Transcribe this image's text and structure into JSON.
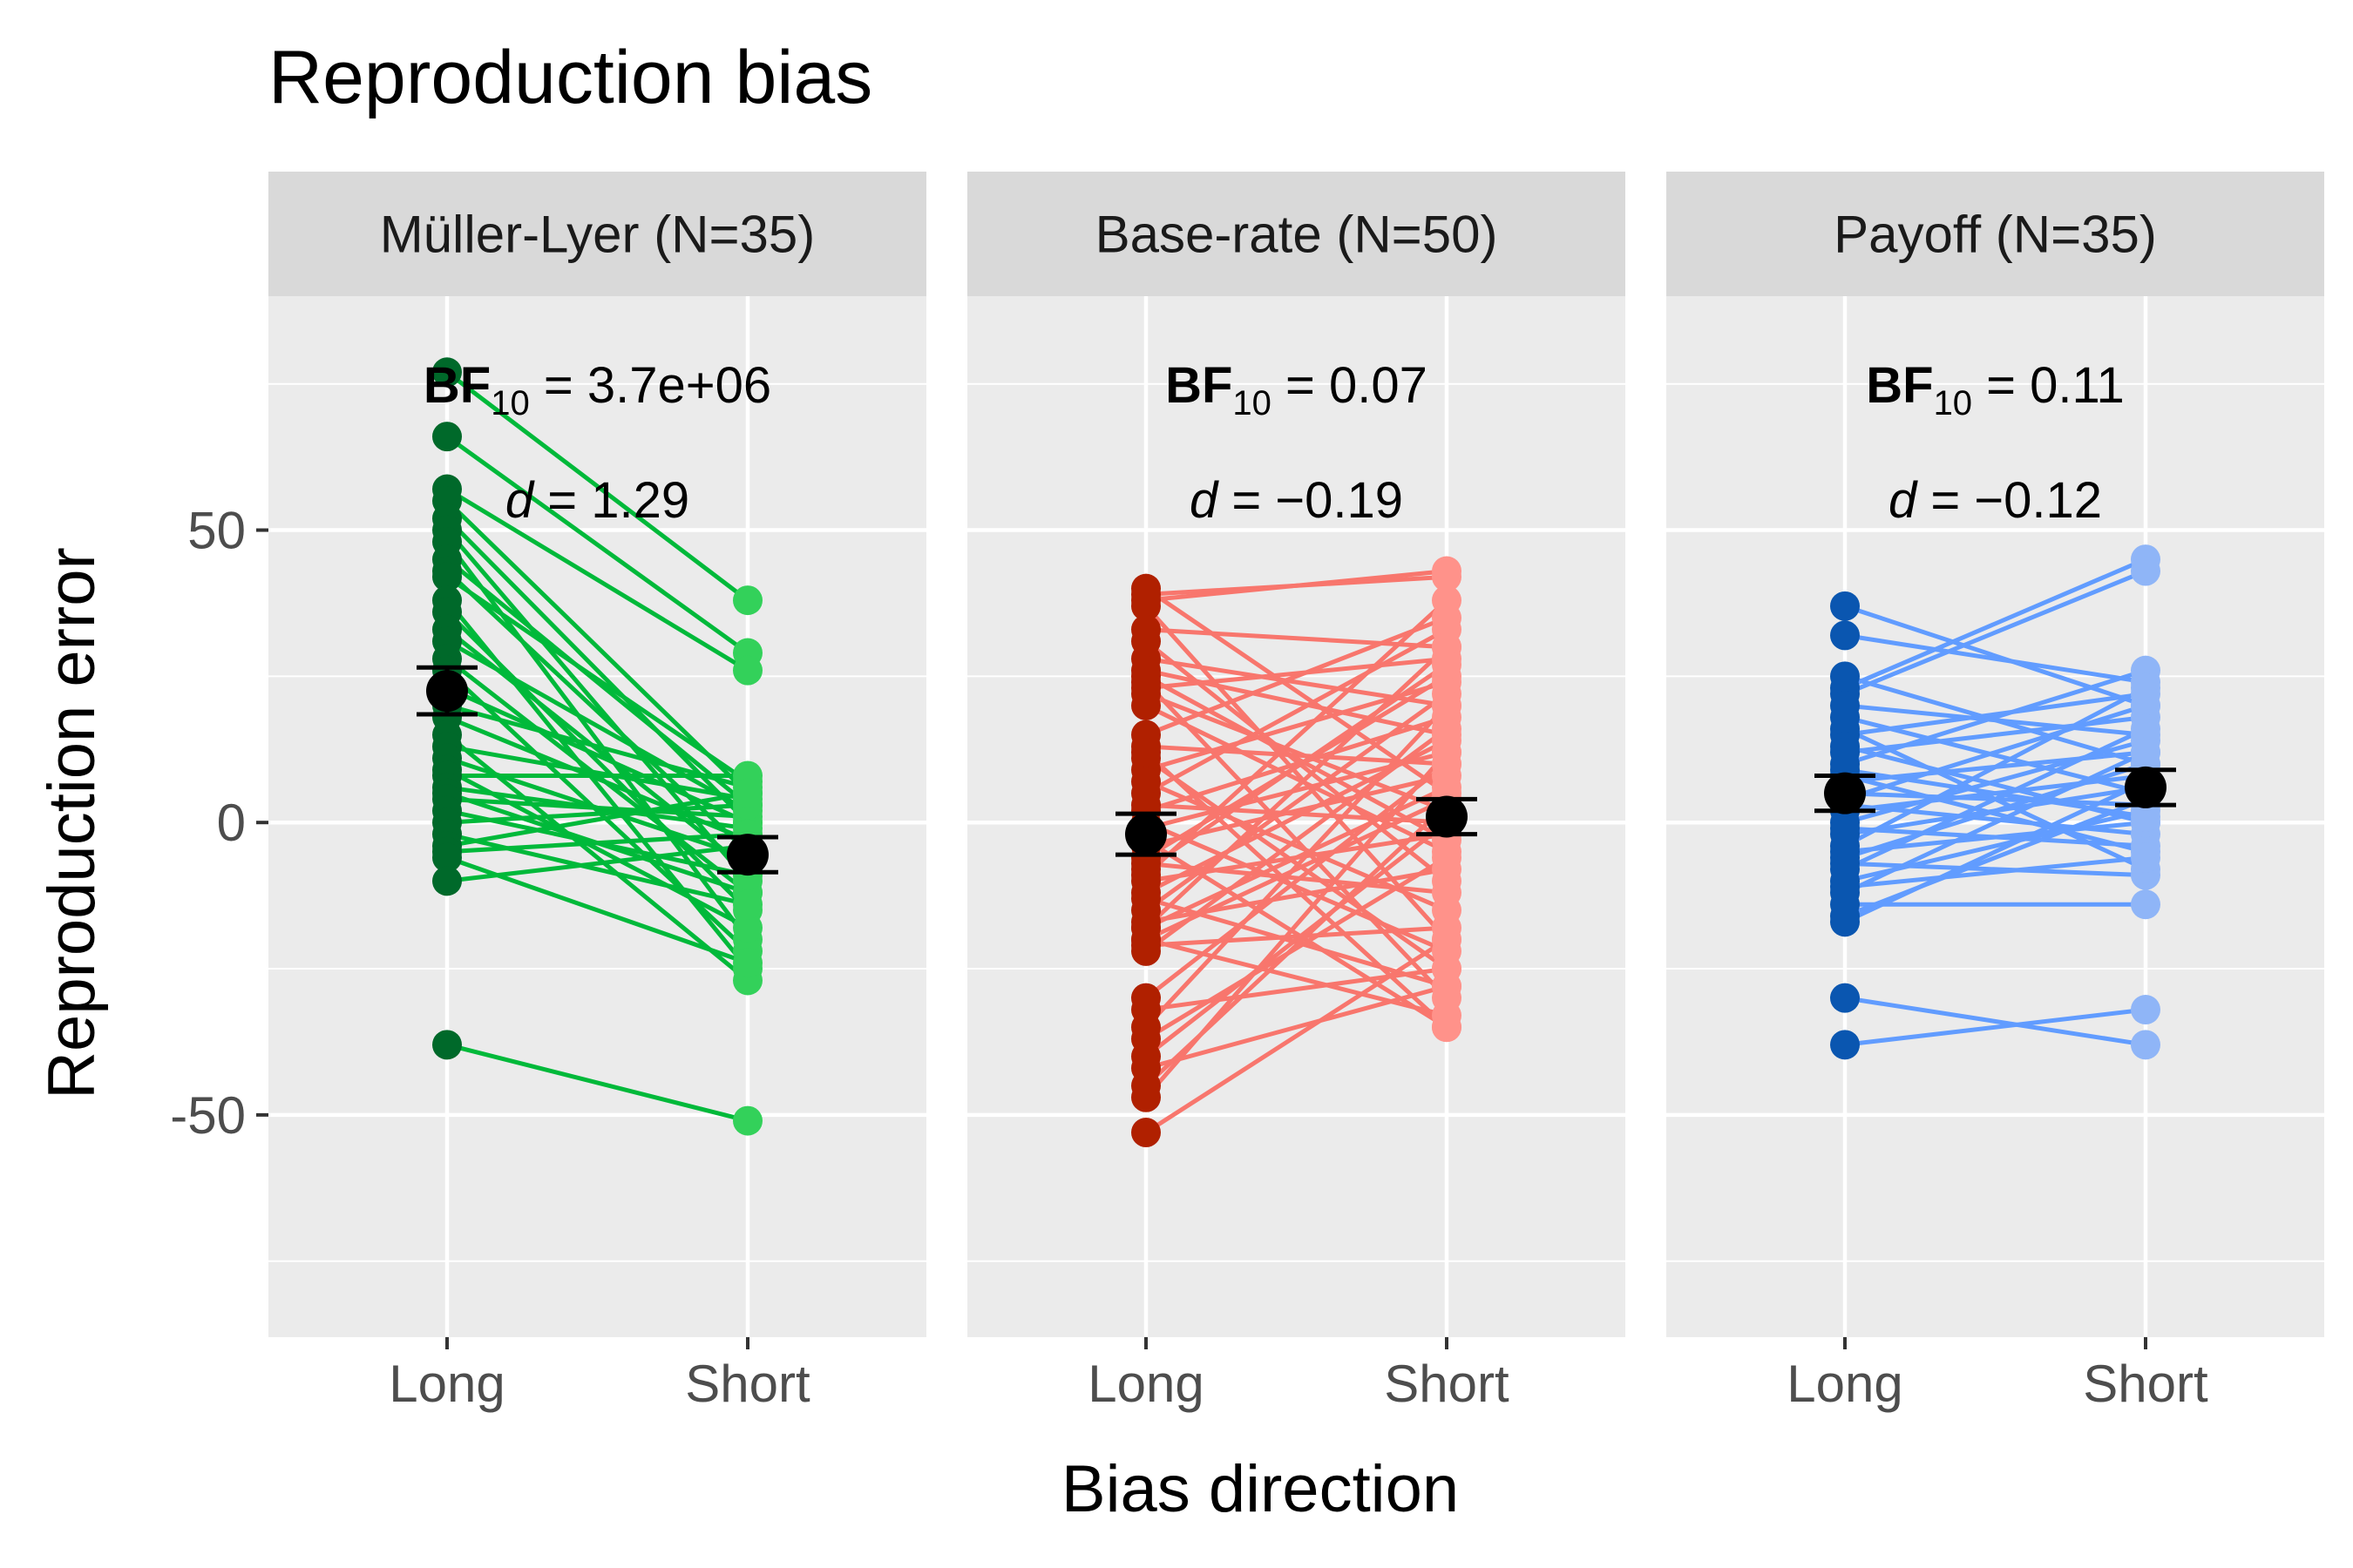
{
  "chart_data": {
    "type": "scatter",
    "title": "Reproduction bias",
    "xlabel": "Bias direction",
    "ylabel": "Reproduction error",
    "categories": [
      "Long",
      "Short"
    ],
    "ylim": [
      -88,
      90
    ],
    "yticks": [
      {
        "value": 50,
        "label": "50"
      },
      {
        "value": 0,
        "label": "0"
      },
      {
        "value": -50,
        "label": "-50"
      }
    ],
    "grid": true,
    "panels": [
      {
        "strip": "Müller-Lyer (N=35)",
        "bf_label": "BF",
        "bf_sub": "10",
        "bf_value": " = 3.7e+06",
        "d_label": "d",
        "d_value": " = 1.29",
        "colors": {
          "long": "#00692a",
          "short": "#33d15a",
          "line": "#00b93a"
        },
        "mean": {
          "long": 22.5,
          "short": -5.5
        },
        "error": {
          "long": [
            18.5,
            26.5
          ],
          "short": [
            -8.5,
            -2.5
          ]
        },
        "pairs": [
          [
            77,
            38
          ],
          [
            66,
            29
          ],
          [
            57,
            26
          ],
          [
            55,
            5
          ],
          [
            52,
            0
          ],
          [
            50,
            -10
          ],
          [
            48,
            -20
          ],
          [
            45,
            3
          ],
          [
            43,
            -5
          ],
          [
            42,
            7
          ],
          [
            38,
            -25
          ],
          [
            36,
            -15
          ],
          [
            33,
            -8
          ],
          [
            31,
            2
          ],
          [
            28,
            -12
          ],
          [
            26,
            -22
          ],
          [
            23,
            0
          ],
          [
            20,
            6
          ],
          [
            18,
            -3
          ],
          [
            15,
            -27
          ],
          [
            13,
            4
          ],
          [
            11,
            -6
          ],
          [
            9,
            -18
          ],
          [
            8,
            8
          ],
          [
            6,
            -1
          ],
          [
            5,
            -12
          ],
          [
            4,
            1
          ],
          [
            2,
            -9
          ],
          [
            0,
            3
          ],
          [
            -2,
            -14
          ],
          [
            -4,
            5
          ],
          [
            -5,
            -2
          ],
          [
            -6,
            -24
          ],
          [
            -10,
            -4
          ],
          [
            -38,
            -51
          ]
        ]
      },
      {
        "strip": "Base-rate (N=50)",
        "bf_label": "BF",
        "bf_sub": "10",
        "bf_value": " = 0.07",
        "d_label": "d",
        "d_value": " = −0.19",
        "colors": {
          "long": "#b02000",
          "short": "#ff928a",
          "line": "#f8766d"
        },
        "mean": {
          "long": -2,
          "short": 1
        },
        "error": {
          "long": [
            -5.5,
            1.5
          ],
          "short": [
            -2,
            4
          ]
        },
        "pairs": [
          [
            40,
            5
          ],
          [
            38,
            43
          ],
          [
            37,
            -20
          ],
          [
            33,
            30
          ],
          [
            31,
            -10
          ],
          [
            28,
            20
          ],
          [
            26,
            15
          ],
          [
            24,
            -30
          ],
          [
            23,
            28
          ],
          [
            22,
            2
          ],
          [
            20,
            -5
          ],
          [
            15,
            35
          ],
          [
            13,
            10
          ],
          [
            11,
            -25
          ],
          [
            9,
            24
          ],
          [
            7,
            -15
          ],
          [
            5,
            33
          ],
          [
            3,
            0
          ],
          [
            2,
            18
          ],
          [
            0,
            -22
          ],
          [
            -1,
            12
          ],
          [
            -3,
            -35
          ],
          [
            -4,
            8
          ],
          [
            -6,
            25
          ],
          [
            -7,
            -12
          ],
          [
            -9,
            38
          ],
          [
            -10,
            -2
          ],
          [
            -12,
            14
          ],
          [
            -13,
            -28
          ],
          [
            -15,
            22
          ],
          [
            -17,
            -8
          ],
          [
            -18,
            30
          ],
          [
            -20,
            4
          ],
          [
            -21,
            -18
          ],
          [
            -22,
            16
          ],
          [
            -20,
            -33
          ],
          [
            -18,
            6
          ],
          [
            -30,
            10
          ],
          [
            -32,
            -25
          ],
          [
            -35,
            20
          ],
          [
            -37,
            -6
          ],
          [
            -40,
            0
          ],
          [
            -42,
            -28
          ],
          [
            -45,
            3
          ],
          [
            -47,
            12
          ],
          [
            -53,
            -20
          ],
          [
            39,
            42
          ],
          [
            12,
            -35
          ],
          [
            -8,
            27
          ],
          [
            25,
            -3
          ]
        ]
      },
      {
        "strip": "Payoff (N=35)",
        "bf_label": "BF",
        "bf_sub": "10",
        "bf_value": " = 0.11",
        "d_label": "d",
        "d_value": " = −0.12",
        "colors": {
          "long": "#0a56b0",
          "short": "#8fb5f7",
          "line": "#619cff"
        },
        "mean": {
          "long": 5,
          "short": 6
        },
        "error": {
          "long": [
            2,
            8
          ],
          "short": [
            3,
            9
          ]
        },
        "pairs": [
          [
            37,
            20
          ],
          [
            32,
            24
          ],
          [
            25,
            10
          ],
          [
            23,
            45
          ],
          [
            22,
            43
          ],
          [
            20,
            15
          ],
          [
            18,
            5
          ],
          [
            16,
            -8
          ],
          [
            15,
            22
          ],
          [
            13,
            0
          ],
          [
            12,
            18
          ],
          [
            10,
            26
          ],
          [
            8,
            -5
          ],
          [
            7,
            12
          ],
          [
            5,
            3
          ],
          [
            4,
            20
          ],
          [
            3,
            -2
          ],
          [
            2,
            8
          ],
          [
            0,
            14
          ],
          [
            -1,
            -4
          ],
          [
            -2,
            6
          ],
          [
            -4,
            23
          ],
          [
            -5,
            0
          ],
          [
            -6,
            10
          ],
          [
            -7,
            -9
          ],
          [
            -8,
            16
          ],
          [
            -10,
            2
          ],
          [
            -11,
            -6
          ],
          [
            -12,
            12
          ],
          [
            -14,
            -14
          ],
          [
            -16,
            4
          ],
          [
            -17,
            7
          ],
          [
            -30,
            -38
          ],
          [
            -38,
            -32
          ],
          [
            9,
            1
          ]
        ]
      }
    ]
  }
}
